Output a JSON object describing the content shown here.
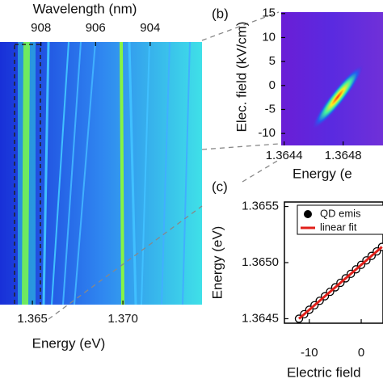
{
  "chart_data": [
    {
      "type": "heatmap",
      "x_label": "Energy (eV)",
      "x2_label": "Wavelength (nm)",
      "xlim": [
        1.36321,
        1.37437
      ],
      "xticks": [
        1.365,
        {
          "value": 1.37,
          "label": "1.370"
        }
      ],
      "x2lim": [
        909.5,
        902.1
      ],
      "x2ticks": [
        908,
        906,
        904
      ],
      "colormap": [
        "#1830d8",
        "#2f86f0",
        "#3fe0e8"
      ]
    },
    {
      "type": "heatmap",
      "panel_label": "(b)",
      "x_label": "Energy (e",
      "y_label": "Elec. field (kV/cm)",
      "xlim": [
        1.36438,
        1.36507
      ],
      "xticks": [
        1.3644,
        1.3648
      ],
      "ylim": [
        -12.5,
        15.3
      ],
      "yticks": [
        -10,
        -5,
        0,
        5,
        10,
        15
      ],
      "colormap": [
        "#6a1ed6",
        "#5a2ae0",
        "#7030d8"
      ]
    },
    {
      "type": "scatter",
      "panel_label": "(c)",
      "x_label": "Electric field",
      "y_label": "Energy (eV)",
      "xlim": [
        -14.8,
        4.2
      ],
      "xticks": [
        -10,
        0
      ],
      "ylim": [
        1.36446,
        1.36554
      ],
      "yticks": [
        1.3645,
        {
          "value": 1.365,
          "label": "1.3650"
        },
        1.3655
      ],
      "x": [
        -12,
        -11,
        -10,
        -9,
        -8,
        -7,
        -6,
        -5,
        -4,
        -3,
        -2,
        -1,
        0,
        1,
        2,
        3,
        4
      ],
      "series": [
        {
          "name": "QD emis",
          "color": "#000000",
          "values": [
            1.3645,
            1.36454,
            1.36458,
            1.36462,
            1.36466,
            1.3647,
            1.36474,
            1.36478,
            1.36482,
            1.36486,
            1.3649,
            1.36494,
            1.36498,
            1.36502,
            1.36506,
            1.3651,
            1.36514
          ]
        },
        {
          "name": "linear fit",
          "color": "#e0201a",
          "values": [
            1.3645,
            1.36454,
            1.36458,
            1.36462,
            1.36466,
            1.3647,
            1.36474,
            1.36478,
            1.36482,
            1.36486,
            1.3649,
            1.36494,
            1.36498,
            1.36502,
            1.36506,
            1.3651,
            1.36514
          ]
        }
      ],
      "legend": "upper left"
    }
  ]
}
